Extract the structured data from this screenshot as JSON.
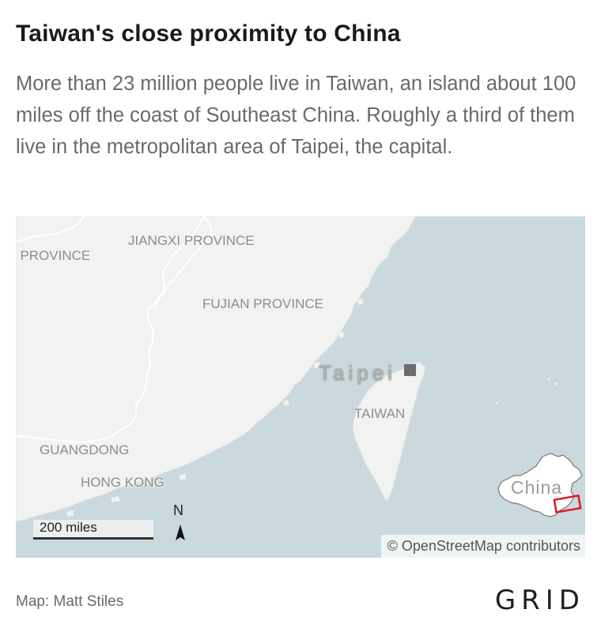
{
  "header": {
    "title": "Taiwan's close proximity to China",
    "subtitle": "More than 23 million people live in Taiwan, an island about 100 miles off the coast of Southeast China. Roughly a third of them live in the metropolitan area of Taipei, the capital."
  },
  "map": {
    "labels": {
      "province_left": "I PROVINCE",
      "jiangxi": "JIANGXI PROVINCE",
      "fujian": "FUJIAN PROVINCE",
      "taipei": "Taipei",
      "taiwan": "TAIWAN",
      "guangdong": "GUANGDONG",
      "hong_kong": "HONG KONG"
    },
    "scale_label": "200 miles",
    "north_label": "N",
    "attribution": "© OpenStreetMap contributors",
    "inset_label": "China",
    "colors": {
      "land": "#f2f2f1",
      "water": "#c9d9de",
      "border": "#ffffff",
      "highlight": "#e0191f"
    }
  },
  "footer": {
    "credit": "Map: Matt Stiles",
    "logo": "GRID"
  }
}
